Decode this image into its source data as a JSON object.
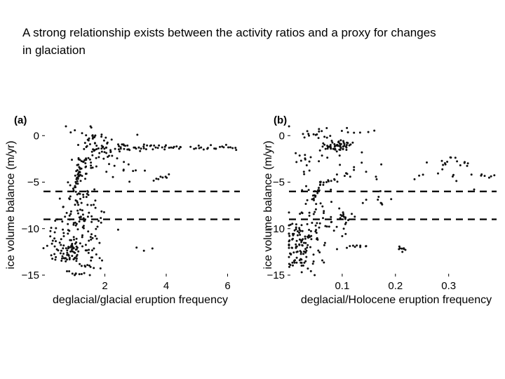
{
  "slide": {
    "title": "A strong relationship exists between the activity ratios and a proxy for changes in glaciation"
  },
  "chart_data": [
    {
      "type": "scatter",
      "panel_label": "(a)",
      "xlabel": "deglacial/glacial eruption frequency",
      "ylabel": "ice volume balance (m/yr)",
      "xlim": [
        0,
        6.4
      ],
      "ylim": [
        -15,
        1
      ],
      "xticks": [
        2,
        4,
        6
      ],
      "xtick_labels": [
        "2",
        "4",
        "6"
      ],
      "yticks": [
        0,
        -5,
        -10,
        -15
      ],
      "ytick_labels": [
        "0",
        "−5",
        "−10",
        "−15"
      ],
      "thresholds": [
        -6,
        -9
      ],
      "grid": false,
      "color": "#111111",
      "clusters": [
        {
          "x": 1.0,
          "y": -12.5,
          "sx": 0.35,
          "sy": 1.1,
          "n": 90
        },
        {
          "x": 0.7,
          "y": -10.0,
          "sx": 0.3,
          "sy": 1.5,
          "n": 35
        },
        {
          "x": 1.15,
          "y": -7.5,
          "sx": 0.3,
          "sy": 1.6,
          "n": 45
        },
        {
          "x": 1.7,
          "y": -9.5,
          "sx": 0.35,
          "sy": 1.6,
          "n": 30
        },
        {
          "x": 1.2,
          "y": -3.5,
          "sx": 0.15,
          "sy": 0.6,
          "n": 30
        },
        {
          "x": 1.7,
          "y": -2.5,
          "sx": 0.3,
          "sy": 1.2,
          "n": 30
        },
        {
          "x": 2.2,
          "y": -1.2,
          "sx": 0.5,
          "sy": 0.6,
          "n": 40
        },
        {
          "x": 1.5,
          "y": 0.3,
          "sx": 0.4,
          "sy": 0.4,
          "n": 15
        },
        {
          "x": 2.7,
          "y": -3.0,
          "sx": 0.3,
          "sy": 0.8,
          "n": 12
        },
        {
          "x": 0.4,
          "y": -11.5,
          "sx": 0.15,
          "sy": 1.0,
          "n": 8
        }
      ],
      "segments": [
        {
          "x0": 2.5,
          "y0": -1.3,
          "x1": 4.5,
          "y1": -1.2,
          "n": 35
        },
        {
          "x0": 4.8,
          "y0": -1.3,
          "x1": 6.3,
          "y1": -1.4,
          "n": 22
        },
        {
          "x0": 1.0,
          "y0": -6.0,
          "x1": 1.2,
          "y1": -3.8,
          "n": 18
        },
        {
          "x0": 3.6,
          "y0": -4.8,
          "x1": 4.1,
          "y1": -4.3,
          "n": 8
        },
        {
          "x0": 3.0,
          "y0": -12.3,
          "x1": 3.6,
          "y1": -12.2,
          "n": 3
        },
        {
          "x0": 0.8,
          "y0": -14.5,
          "x1": 1.2,
          "y1": -15.0,
          "n": 4
        }
      ]
    },
    {
      "type": "scatter",
      "panel_label": "(b)",
      "xlabel": "deglacial/Holocene eruption frequency",
      "ylabel": "ice volume balance (m/yr)",
      "xlim": [
        0,
        0.39
      ],
      "ylim": [
        -15,
        1
      ],
      "xticks": [
        0.1,
        0.2,
        0.3
      ],
      "xtick_labels": [
        "0.1",
        "0.2",
        "0.3"
      ],
      "yticks": [
        0,
        -5,
        -10,
        -15
      ],
      "ytick_labels": [
        "0",
        "−5",
        "−10",
        "−15"
      ],
      "thresholds": [
        -6,
        -9
      ],
      "grid": false,
      "color": "#111111",
      "clusters": [
        {
          "x": 0.015,
          "y": -12.0,
          "sx": 0.012,
          "sy": 1.3,
          "n": 80
        },
        {
          "x": 0.045,
          "y": -10.5,
          "sx": 0.015,
          "sy": 2.0,
          "n": 45
        },
        {
          "x": 0.07,
          "y": -9.5,
          "sx": 0.02,
          "sy": 1.6,
          "n": 30
        },
        {
          "x": 0.085,
          "y": -1.2,
          "sx": 0.015,
          "sy": 0.5,
          "n": 30
        },
        {
          "x": 0.03,
          "y": -3.0,
          "sx": 0.01,
          "sy": 1.5,
          "n": 15
        },
        {
          "x": 0.12,
          "y": -4.0,
          "sx": 0.03,
          "sy": 1.2,
          "n": 15
        },
        {
          "x": 0.06,
          "y": 0.3,
          "sx": 0.03,
          "sy": 0.5,
          "n": 18
        },
        {
          "x": 0.3,
          "y": -3.2,
          "sx": 0.03,
          "sy": 1.0,
          "n": 25
        },
        {
          "x": 0.16,
          "y": -7.0,
          "sx": 0.02,
          "sy": 0.6,
          "n": 10
        }
      ],
      "segments": [
        {
          "x0": 0.045,
          "y0": -7.0,
          "x1": 0.06,
          "y1": -5.0,
          "n": 16
        },
        {
          "x0": 0.06,
          "y0": -5.0,
          "x1": 0.09,
          "y1": -4.7,
          "n": 10
        },
        {
          "x0": 0.07,
          "y0": -1.3,
          "x1": 0.115,
          "y1": -1.0,
          "n": 28
        },
        {
          "x0": 0.095,
          "y0": -8.0,
          "x1": 0.11,
          "y1": -9.5,
          "n": 12
        },
        {
          "x0": 0.11,
          "y0": -12.0,
          "x1": 0.145,
          "y1": -12.0,
          "n": 9
        },
        {
          "x0": 0.205,
          "y0": -12.1,
          "x1": 0.22,
          "y1": -12.2,
          "n": 8
        },
        {
          "x0": 0.1,
          "y0": 0.3,
          "x1": 0.16,
          "y1": 0.4,
          "n": 6
        },
        {
          "x0": 0.36,
          "y0": -4.4,
          "x1": 0.385,
          "y1": -4.3,
          "n": 6
        },
        {
          "x0": 0.02,
          "y0": -13.5,
          "x1": 0.05,
          "y1": -15.0,
          "n": 5
        }
      ]
    }
  ]
}
